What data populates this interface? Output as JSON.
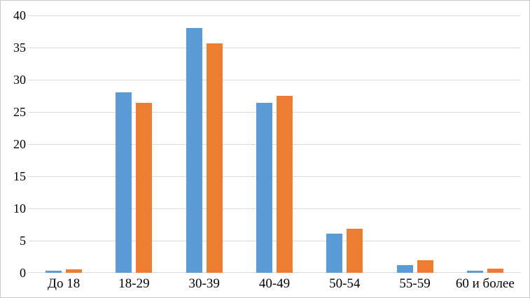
{
  "window": {
    "background": "#ffffff",
    "border_color": "#c9c9c9"
  },
  "chart_data": {
    "type": "bar",
    "title": "",
    "xlabel": "",
    "ylabel": "",
    "categories": [
      "До 18",
      "18-29",
      "30-39",
      "40-49",
      "50-54",
      "55-59",
      "60 и более"
    ],
    "series": [
      {
        "name": "blue",
        "color": "#5b9bd5",
        "values": [
          0.3,
          28.0,
          38.0,
          26.4,
          6.1,
          1.2,
          0.3
        ]
      },
      {
        "name": "orange",
        "color": "#ed7d31",
        "values": [
          0.5,
          26.4,
          35.7,
          27.5,
          6.8,
          2.0,
          0.7
        ]
      }
    ],
    "ylim": [
      0,
      40
    ],
    "yticks": [
      0,
      5,
      10,
      15,
      20,
      25,
      30,
      35,
      40
    ],
    "grid": "horizontal",
    "gridline_color": "#d9d9d9",
    "axis_line_color": "#d9d9d9",
    "tick_label_color": "#000000",
    "legend": "none"
  }
}
